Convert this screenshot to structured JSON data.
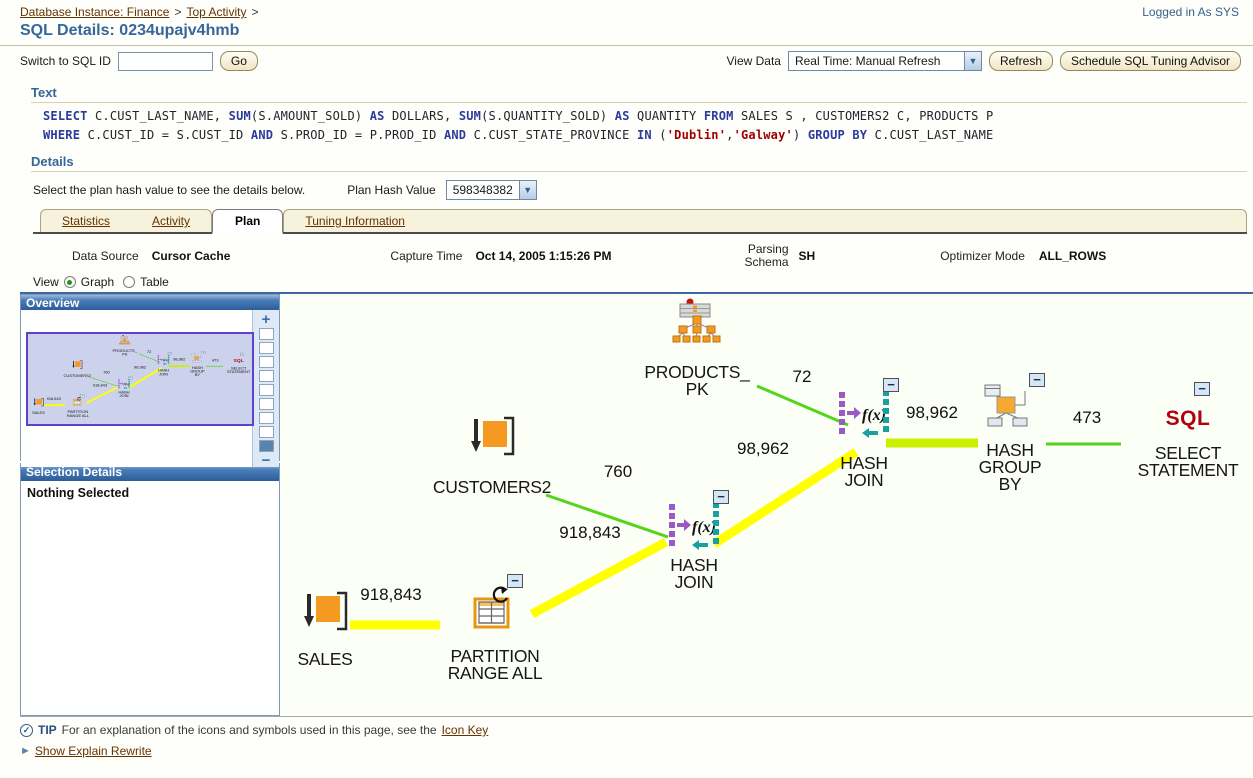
{
  "colors": {
    "accent_blue": "#336699",
    "link_brown": "#663300",
    "edge_green": "#55d41e",
    "edge_yellow": "#ffff00",
    "edge_yellow_green": "#ccf000",
    "node_orange": "#f49a22",
    "sql_red": "#b00010",
    "panel_header_blue": "#2d5d99",
    "thumbnail_lavender": "#ccd2ec"
  },
  "icons": {
    "dropdown_arrow": "▼",
    "tip_check": "✓",
    "explain_arrow": "►"
  },
  "header": {
    "breadcrumb": {
      "items": [
        {
          "label": "Database Instance: Finance"
        },
        {
          "label": "Top Activity"
        }
      ],
      "separator": ">"
    },
    "logged_in": "Logged in As SYS",
    "title": "SQL Details: 0234upajv4hmb"
  },
  "toolbar": {
    "switch_label": "Switch to SQL ID",
    "switch_value": "",
    "go": "Go",
    "view_data_label": "View Data",
    "view_data_value": "Real Time: Manual Refresh",
    "refresh": "Refresh",
    "schedule": "Schedule SQL Tuning Advisor"
  },
  "text_section": {
    "heading": "Text",
    "sql_line1": [
      {
        "c": "kw",
        "t": "SELECT "
      },
      {
        "c": "id",
        "t": "C.CUST_LAST_NAME, "
      },
      {
        "c": "kw",
        "t": "SUM"
      },
      {
        "c": "id",
        "t": "(S.AMOUNT_SOLD) "
      },
      {
        "c": "kw",
        "t": "AS "
      },
      {
        "c": "id",
        "t": "DOLLARS, "
      },
      {
        "c": "kw",
        "t": "SUM"
      },
      {
        "c": "id",
        "t": "(S.QUANTITY_SOLD) "
      },
      {
        "c": "kw",
        "t": "AS "
      },
      {
        "c": "id",
        "t": "QUANTITY "
      },
      {
        "c": "kw",
        "t": "FROM "
      },
      {
        "c": "id",
        "t": "SALES S , CUSTOMERS2 C, PRODUCTS P"
      }
    ],
    "sql_line2": [
      {
        "c": "kw",
        "t": "WHERE "
      },
      {
        "c": "id",
        "t": "C.CUST_ID = S.CUST_ID "
      },
      {
        "c": "kw",
        "t": "AND "
      },
      {
        "c": "id",
        "t": "S.PROD_ID = P.PROD_ID "
      },
      {
        "c": "kw",
        "t": "AND "
      },
      {
        "c": "id",
        "t": "C.CUST_STATE_PROVINCE "
      },
      {
        "c": "kw",
        "t": "IN "
      },
      {
        "c": "id",
        "t": "("
      },
      {
        "c": "str",
        "t": "'Dublin'"
      },
      {
        "c": "id",
        "t": ","
      },
      {
        "c": "str",
        "t": "'Galway'"
      },
      {
        "c": "id",
        "t": ") "
      },
      {
        "c": "kw",
        "t": "GROUP BY "
      },
      {
        "c": "id",
        "t": "C.CUST_LAST_NAME"
      }
    ]
  },
  "details_section": {
    "heading": "Details",
    "instruction": "Select the plan hash value to see the details below.",
    "plan_hash_label": "Plan Hash Value",
    "plan_hash_value": "598348382"
  },
  "tabs": {
    "statistics": "Statistics",
    "activity": "Activity",
    "plan": "Plan",
    "tuning": "Tuning Information"
  },
  "plan_info": {
    "data_source_label": "Data Source",
    "data_source_value": "Cursor Cache",
    "capture_time_label": "Capture Time",
    "capture_time_value": "Oct 14, 2005 1:15:26 PM",
    "parsing_schema_label": "Parsing Schema",
    "parsing_schema_value": "SH",
    "optimizer_mode_label": "Optimizer Mode",
    "optimizer_mode_value": "ALL_ROWS"
  },
  "view_toggle": {
    "label": "View",
    "graph": "Graph",
    "table": "Table",
    "selected": "Graph"
  },
  "overview_panel": {
    "heading": "Overview",
    "zoom_in": "+",
    "zoom_out": "−"
  },
  "selection_panel": {
    "heading": "Selection Details",
    "body": "Nothing Selected"
  },
  "plan_graph": {
    "fx_glyph": "f(x)",
    "collapse_glyph": "−",
    "nodes": {
      "products_pk": {
        "line1": "PRODUCTS_",
        "line2": "PK"
      },
      "customers2": {
        "line1": "CUSTOMERS2"
      },
      "sales": {
        "line1": "SALES"
      },
      "partition_range_all": {
        "line1": "PARTITION",
        "line2": "RANGE ALL"
      },
      "hash_join_lower": {
        "line1": "HASH",
        "line2": "JOIN"
      },
      "hash_join_upper": {
        "line1": "HASH",
        "line2": "JOIN"
      },
      "hash_group_by": {
        "line1": "HASH",
        "line2": "GROUP",
        "line3": "BY"
      },
      "select_statement": {
        "icon_text": "SQL",
        "line1": "SELECT",
        "line2": "STATEMENT"
      }
    },
    "edges": {
      "products_to_join": "72",
      "customers_to_join": "760",
      "sales_to_partition": "918,843",
      "partition_to_join": "918,843",
      "join_to_join": "98,962",
      "join_to_group": "98,962",
      "group_to_select": "473"
    }
  },
  "footer": {
    "tip_label": "TIP",
    "tip_text": "For an explanation of the icons and symbols used in this page, see the",
    "icon_key_link": "Icon Key",
    "show_explain_link": "Show Explain Rewrite"
  }
}
